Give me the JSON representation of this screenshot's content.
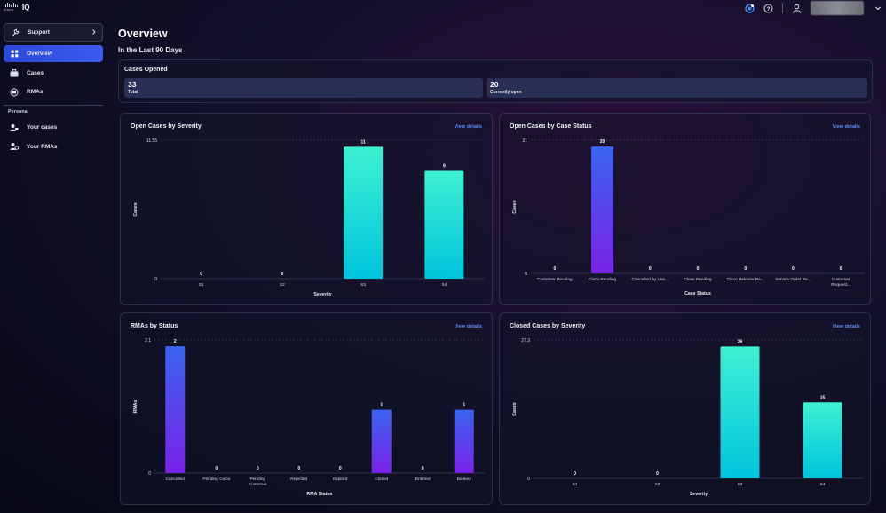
{
  "app": {
    "logo_word": "cisco",
    "name": "IQ"
  },
  "sidebar": {
    "support": "Support",
    "items": [
      {
        "label": "Overview",
        "active": true,
        "icon": "dashboard-icon"
      },
      {
        "label": "Cases",
        "active": false,
        "icon": "briefcase-icon"
      },
      {
        "label": "RMAs",
        "active": false,
        "icon": "rma-icon"
      }
    ],
    "personal_heading": "Personal",
    "personal_items": [
      {
        "label": "Your cases",
        "icon": "user-case-icon"
      },
      {
        "label": "Your RMAs",
        "icon": "user-rma-icon"
      }
    ]
  },
  "page": {
    "title": "Overview",
    "range": "In the Last 90 Days"
  },
  "cases_opened": {
    "title": "Cases Opened",
    "total_value": "33",
    "total_label": "Total",
    "open_value": "20",
    "open_label": "Currently open"
  },
  "view_details": "View details",
  "colors": {
    "accent": "#3b5cf0",
    "link": "#5b8df5",
    "cyan_top": "#3ef0d2",
    "cyan_bottom": "#00c4dc",
    "blue_top": "#3a64f0",
    "purple_bottom": "#7a22e8"
  },
  "chart_data": [
    {
      "id": "open_severity",
      "type": "bar",
      "title": "Open Cases by Severity",
      "xlabel": "Severity",
      "ylabel": "Cases",
      "ylim": [
        0,
        11.55
      ],
      "ytick_labels": [
        "0",
        "11.55"
      ],
      "categories": [
        "S1",
        "S2",
        "S3",
        "S4"
      ],
      "values": [
        0,
        0,
        11,
        9
      ],
      "palette": "cyan"
    },
    {
      "id": "open_status",
      "type": "bar",
      "title": "Open Cases by Case Status",
      "xlabel": "Case Status",
      "ylabel": "Cases",
      "ylim": [
        0,
        21
      ],
      "ytick_labels": [
        "0",
        "21"
      ],
      "categories": [
        "Customer Pending",
        "Cisco Pending",
        "Cancelled by Use...",
        "Close Pending",
        "Cisco Release Pe...",
        "Service Order Pe...",
        "Customer Request..."
      ],
      "values": [
        0,
        20,
        0,
        0,
        0,
        0,
        0
      ],
      "palette": "purple"
    },
    {
      "id": "rma_status",
      "type": "bar",
      "title": "RMAs by Status",
      "xlabel": "RMA Status",
      "ylabel": "RMAs",
      "ylim": [
        0,
        2.1
      ],
      "ytick_labels": [
        "0",
        "2.1"
      ],
      "categories": [
        "Cancelled",
        "Pending Cisco",
        "Pending Customer",
        "Rejected",
        "Expired",
        "Closed",
        "Entered",
        "Booked"
      ],
      "values": [
        2,
        0,
        0,
        0,
        0,
        1,
        0,
        1
      ],
      "palette": "purple"
    },
    {
      "id": "closed_severity",
      "type": "bar",
      "title": "Closed Cases by Severity",
      "xlabel": "Severity",
      "ylabel": "Cases",
      "ylim": [
        0,
        27.3
      ],
      "ytick_labels": [
        "0",
        "27.3"
      ],
      "categories": [
        "S1",
        "S2",
        "S3",
        "S4"
      ],
      "values": [
        0,
        0,
        26,
        15
      ],
      "palette": "cyan"
    }
  ]
}
